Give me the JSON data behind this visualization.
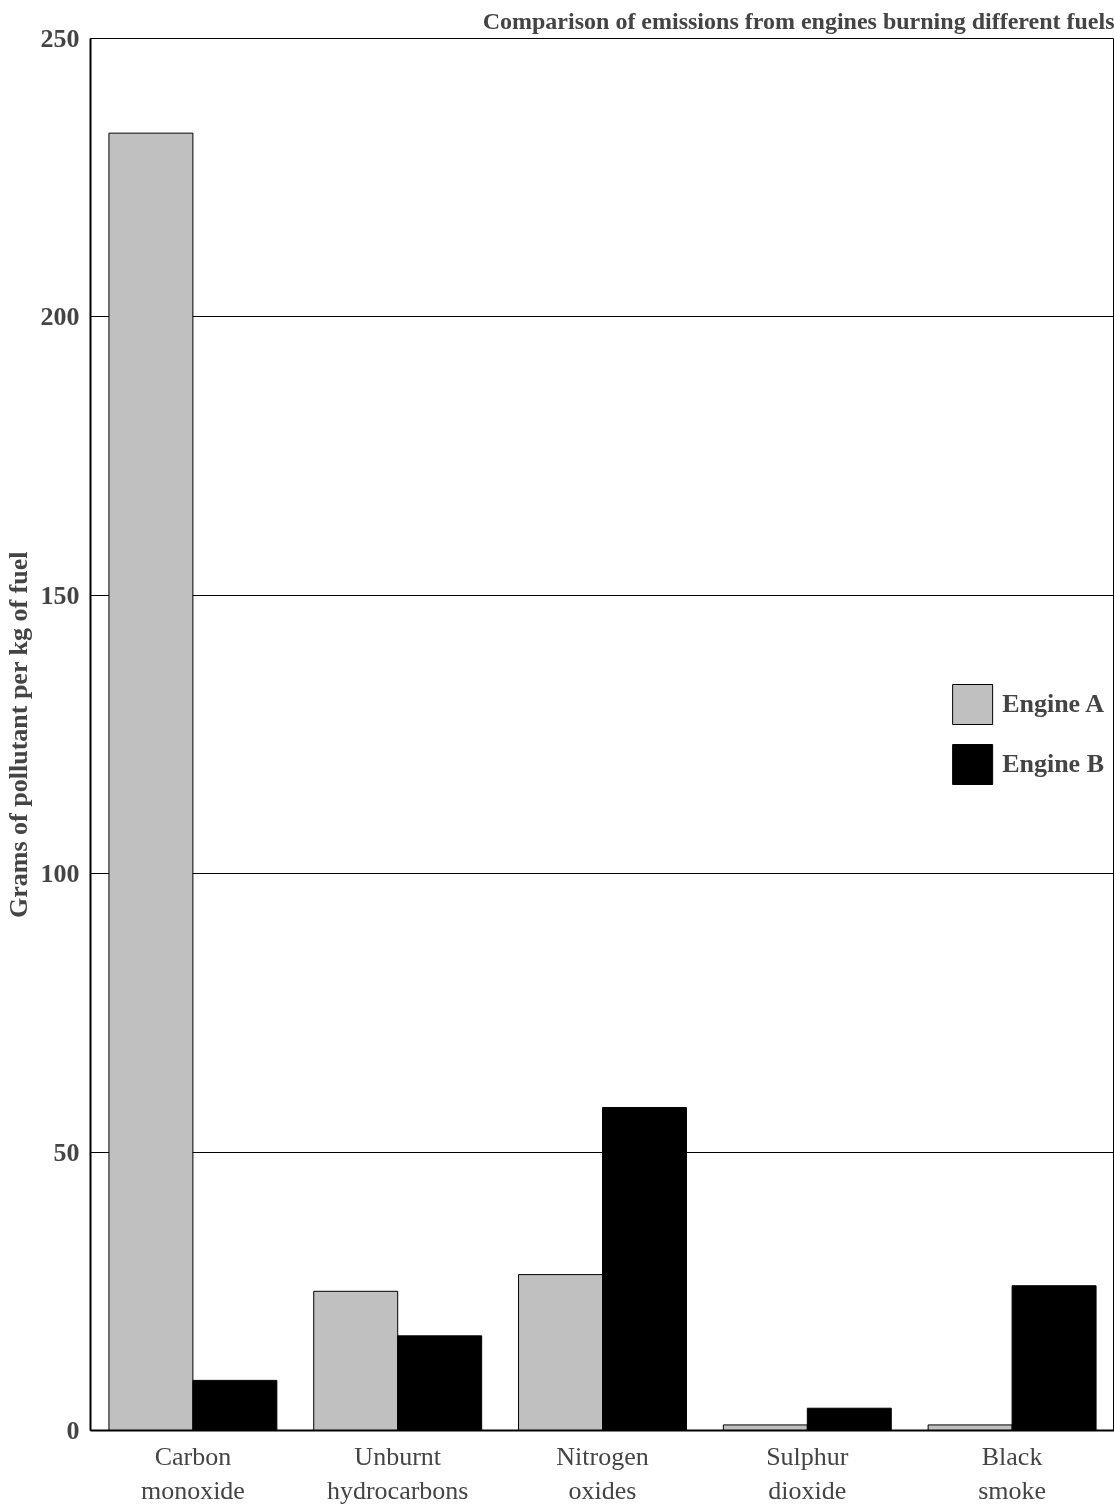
{
  "chart_data": {
    "type": "bar",
    "title": "Comparison of emissions from engines burning different fuels",
    "ylabel": "Grams of pollutant per kg of fuel",
    "categories": [
      "Carbon monoxide",
      "Unburnt hydrocarbons",
      "Nitrogen oxides",
      "Sulphur dioxide",
      "Black smoke"
    ],
    "series": [
      {
        "name": "Engine A",
        "color": "#c0c0c0",
        "values": [
          233,
          25,
          28,
          1,
          1
        ]
      },
      {
        "name": "Engine B",
        "color": "#000000",
        "values": [
          9,
          17,
          58,
          4,
          26
        ]
      }
    ],
    "ylim": [
      0,
      250
    ],
    "yticks": [
      0,
      50,
      100,
      150,
      200,
      250
    ],
    "grid": "y",
    "legend": "right"
  }
}
